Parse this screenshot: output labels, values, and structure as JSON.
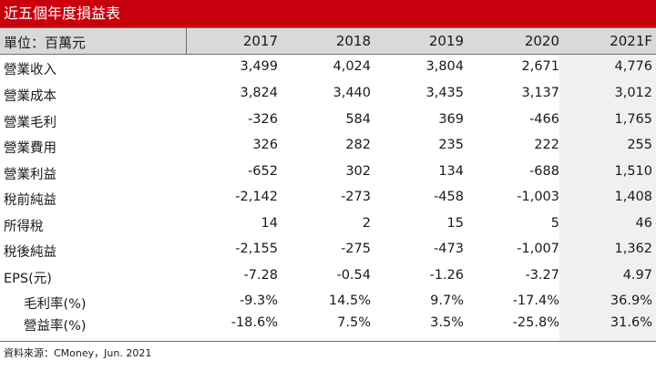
{
  "title": "近五個年度損益表",
  "header": {
    "unit_label": "單位：百萬元",
    "years": [
      "2017",
      "2018",
      "2019",
      "2020",
      "2021F"
    ]
  },
  "rows": [
    {
      "label": "營業收入",
      "values": [
        "3,499",
        "4,024",
        "3,804",
        "2,671",
        "4,776"
      ]
    },
    {
      "label": "營業成本",
      "values": [
        "3,824",
        "3,440",
        "3,435",
        "3,137",
        "3,012"
      ]
    },
    {
      "label": "營業毛利",
      "values": [
        "-326",
        "584",
        "369",
        "-466",
        "1,765"
      ]
    },
    {
      "label": "營業費用",
      "values": [
        "326",
        "282",
        "235",
        "222",
        "255"
      ]
    },
    {
      "label": "營業利益",
      "values": [
        "-652",
        "302",
        "134",
        "-688",
        "1,510"
      ]
    },
    {
      "label": "稅前純益",
      "values": [
        "-2,142",
        "-273",
        "-458",
        "-1,003",
        "1,408"
      ]
    },
    {
      "label": "所得稅",
      "values": [
        "14",
        "2",
        "15",
        "5",
        "46"
      ]
    },
    {
      "label": "稅後純益",
      "values": [
        "-2,155",
        "-275",
        "-473",
        "-1,007",
        "1,362"
      ]
    },
    {
      "label": "EPS(元)",
      "values": [
        "-7.28",
        "-0.54",
        "-1.26",
        "-3.27",
        "4.97"
      ]
    },
    {
      "label": "毛利率(%)",
      "values": [
        "-9.3%",
        "14.5%",
        "9.7%",
        "-17.4%",
        "36.9%"
      ]
    },
    {
      "label": "營益率(%)",
      "values": [
        "-18.6%",
        "7.5%",
        "3.5%",
        "-25.8%",
        "31.6%"
      ]
    }
  ],
  "source": "資料來源：CMoney，Jun. 2021"
}
